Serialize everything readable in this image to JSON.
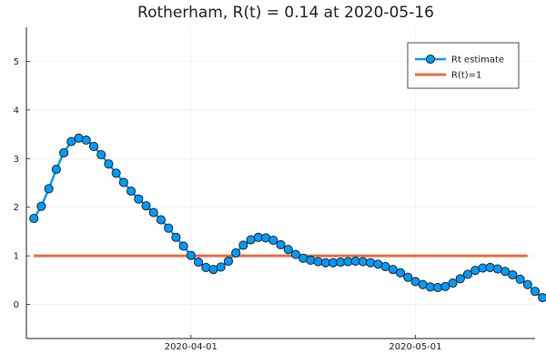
{
  "chart_data": {
    "type": "line",
    "title": "Rotherham, R(t) = 0.14 at 2020-05-16",
    "xlabel": "",
    "ylabel": "",
    "x_start": "2020-03-11",
    "x_end": "2020-05-16",
    "xlim": [
      "2020-03-10",
      "2020-05-17"
    ],
    "ylim": [
      -0.7,
      5.7
    ],
    "x_ticks": [
      {
        "date": "2020-04-01",
        "label": "2020-04-01"
      },
      {
        "date": "2020-05-01",
        "label": "2020-05-01"
      }
    ],
    "y_ticks": [
      {
        "value": 0,
        "label": "0"
      },
      {
        "value": 1,
        "label": "1"
      },
      {
        "value": 2,
        "label": "2"
      },
      {
        "value": 3,
        "label": "3"
      },
      {
        "value": 4,
        "label": "4"
      },
      {
        "value": 5,
        "label": "5"
      }
    ],
    "grid": true,
    "legend_position": "top-right",
    "series": [
      {
        "name": "Rt estimate",
        "color": "#009AFA",
        "marker": "circle",
        "values": [
          1.77,
          2.02,
          2.38,
          2.78,
          3.12,
          3.35,
          3.42,
          3.38,
          3.25,
          3.08,
          2.89,
          2.7,
          2.51,
          2.33,
          2.17,
          2.03,
          1.89,
          1.74,
          1.57,
          1.38,
          1.2,
          1.01,
          0.87,
          0.76,
          0.72,
          0.77,
          0.89,
          1.06,
          1.22,
          1.33,
          1.38,
          1.37,
          1.32,
          1.23,
          1.13,
          1.03,
          0.95,
          0.91,
          0.88,
          0.86,
          0.86,
          0.87,
          0.88,
          0.89,
          0.88,
          0.86,
          0.83,
          0.78,
          0.72,
          0.65,
          0.56,
          0.47,
          0.41,
          0.36,
          0.35,
          0.37,
          0.44,
          0.53,
          0.62,
          0.7,
          0.75,
          0.76,
          0.73,
          0.68,
          0.61,
          0.52,
          0.41,
          0.27,
          0.14
        ]
      },
      {
        "name": "R(t)=1",
        "color": "#E26F46",
        "marker": "none",
        "values": [
          1,
          1
        ]
      }
    ]
  }
}
